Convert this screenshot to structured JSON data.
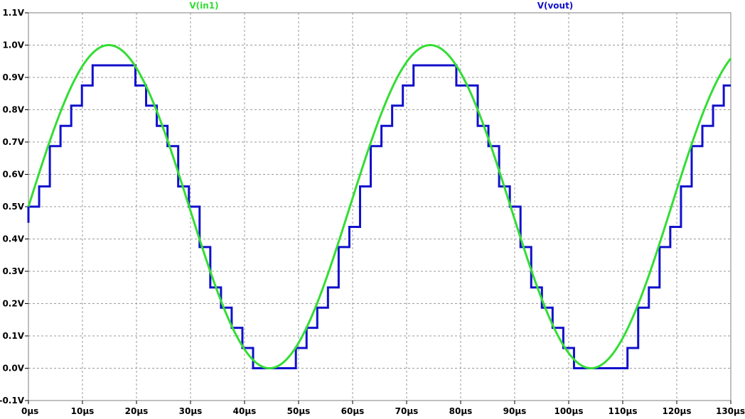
{
  "chart_data": {
    "type": "line",
    "xlim": [
      0,
      130
    ],
    "ylim": [
      -0.1,
      1.1
    ],
    "x_tick_labels": [
      "0µs",
      "10µs",
      "20µs",
      "30µs",
      "40µs",
      "50µs",
      "60µs",
      "70µs",
      "80µs",
      "90µs",
      "100µs",
      "110µs",
      "120µs",
      "130µs"
    ],
    "y_tick_labels": [
      "-0.1V",
      "0.0V",
      "0.1V",
      "0.2V",
      "0.3V",
      "0.4V",
      "0.5V",
      "0.6V",
      "0.7V",
      "0.8V",
      "0.9V",
      "1.0V",
      "1.1V"
    ],
    "x_tick_values": [
      0,
      10,
      20,
      30,
      40,
      50,
      60,
      70,
      80,
      90,
      100,
      110,
      120,
      130
    ],
    "y_tick_values": [
      -0.1,
      0.0,
      0.1,
      0.2,
      0.3,
      0.4,
      0.5,
      0.6,
      0.7,
      0.8,
      0.9,
      1.0,
      1.1
    ],
    "grid": true,
    "legend": "top",
    "series": [
      {
        "name": "V(in1)",
        "color": "#33dd33",
        "kind": "sine",
        "offset": 0.5,
        "amplitude": 0.5,
        "period": 59.5,
        "phase_start": 0
      },
      {
        "name": "V(vout)",
        "color": "#1010cc",
        "kind": "step",
        "levels": 16,
        "full_scale": 1.0,
        "clamp_max": 0.9375,
        "sample_period": 1.98,
        "offset": 0.5,
        "amplitude": 0.5,
        "period": 59.5
      }
    ]
  }
}
